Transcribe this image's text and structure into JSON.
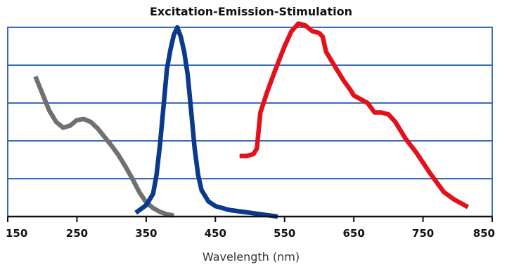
{
  "chart_data": {
    "type": "line",
    "title": "Excitation-Emission-Stimulation",
    "xlabel": "Wavelength (nm)",
    "ylabel": "",
    "xlim": [
      150,
      850
    ],
    "ylim": [
      0,
      100
    ],
    "xticks": [
      "150",
      "250",
      "350",
      "450",
      "550",
      "650",
      "750",
      "850"
    ],
    "y_gridlines": 5,
    "grid": true,
    "legend": "none",
    "series": [
      {
        "color": "#707070",
        "x": [
          190,
          200,
          210,
          220,
          230,
          240,
          250,
          260,
          270,
          280,
          290,
          300,
          310,
          320,
          330,
          340,
          350,
          360,
          370,
          380,
          390
        ],
        "y": [
          74,
          65,
          56,
          50,
          47,
          48,
          51,
          51.5,
          50,
          46.5,
          42,
          37.5,
          32.5,
          26.5,
          20,
          13,
          7.5,
          4.5,
          2.5,
          1.2,
          0.5
        ]
      },
      {
        "color": "#0a3a8e",
        "x": [
          335,
          350,
          360,
          365,
          370,
          375,
          380,
          385,
          390,
          395,
          400,
          405,
          410,
          415,
          420,
          425,
          430,
          440,
          450,
          470,
          500,
          540
        ],
        "y": [
          2,
          6,
          12,
          22,
          38,
          58,
          78,
          88,
          96,
          100,
          95,
          87,
          75,
          56,
          36,
          22,
          14,
          8,
          5.5,
          3.5,
          2,
          0
        ]
      },
      {
        "color": "#e2111b",
        "x": [
          485,
          495,
          505,
          510,
          515,
          525,
          535,
          550,
          560,
          570,
          580,
          590,
          600,
          605,
          610,
          615,
          625,
          635,
          645,
          650,
          660,
          670,
          680,
          690,
          700,
          705,
          710,
          725,
          740,
          760,
          780,
          795,
          815
        ],
        "y": [
          32,
          32,
          33,
          36,
          55,
          66,
          76,
          90,
          98,
          102,
          101,
          98,
          97,
          95,
          87,
          84,
          78,
          72,
          67,
          64,
          62,
          60,
          55,
          55,
          54,
          52,
          50,
          41,
          34,
          23,
          13,
          9,
          5
        ]
      }
    ]
  }
}
